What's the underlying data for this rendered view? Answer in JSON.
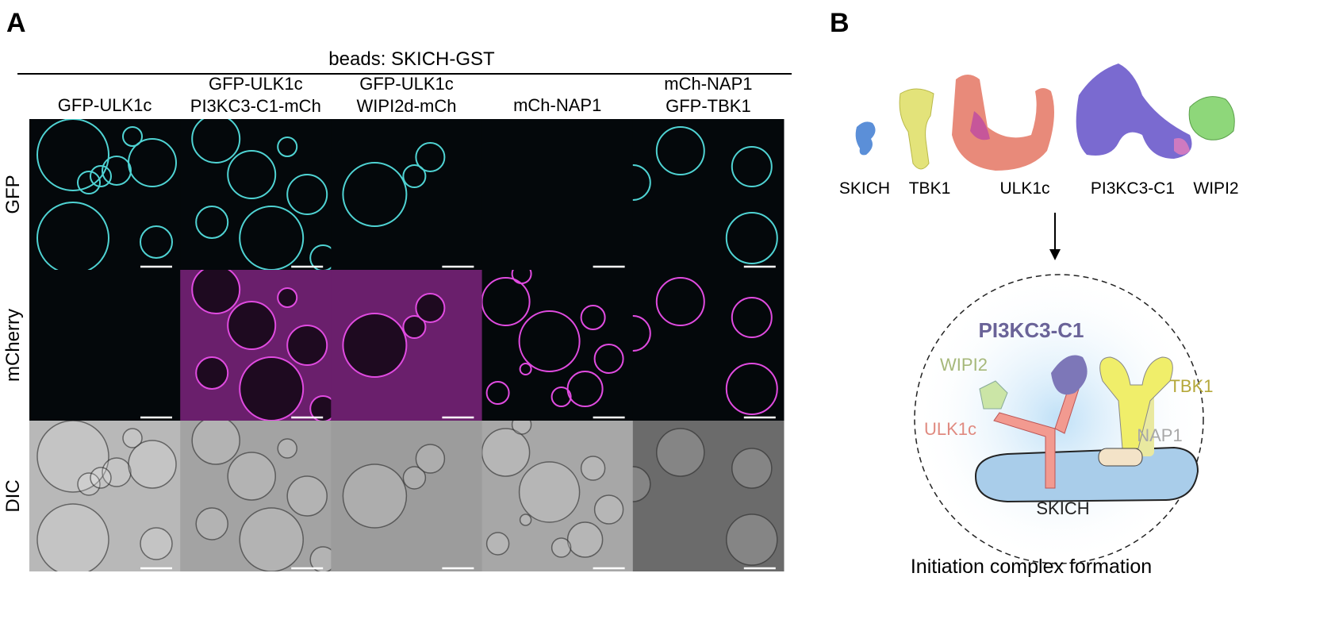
{
  "panel_a": {
    "label": "A",
    "title": "beads: SKICH-GST",
    "columns": [
      [
        "GFP-ULK1c"
      ],
      [
        "GFP-ULK1c",
        "PI3KC3-C1-mCh"
      ],
      [
        "GFP-ULK1c",
        "WIPI2d-mCh"
      ],
      [
        "mCh-NAP1"
      ],
      [
        "mCh-NAP1",
        "GFP-TBK1"
      ]
    ],
    "rows": [
      "GFP",
      "mCherry",
      "DIC"
    ]
  },
  "panel_b": {
    "label": "B",
    "proteins": [
      "SKICH",
      "TBK1",
      "ULK1c",
      "PI3KC3-C1",
      "WIPI2"
    ],
    "diagram_labels": {
      "pi3k": "PI3KC3-C1",
      "wipi2": "WIPI2",
      "tbk1": "TBK1",
      "ulk1c": "ULK1c",
      "nap1": "NAP1",
      "skich": "SKICH"
    },
    "caption": "Initiation complex formation"
  }
}
